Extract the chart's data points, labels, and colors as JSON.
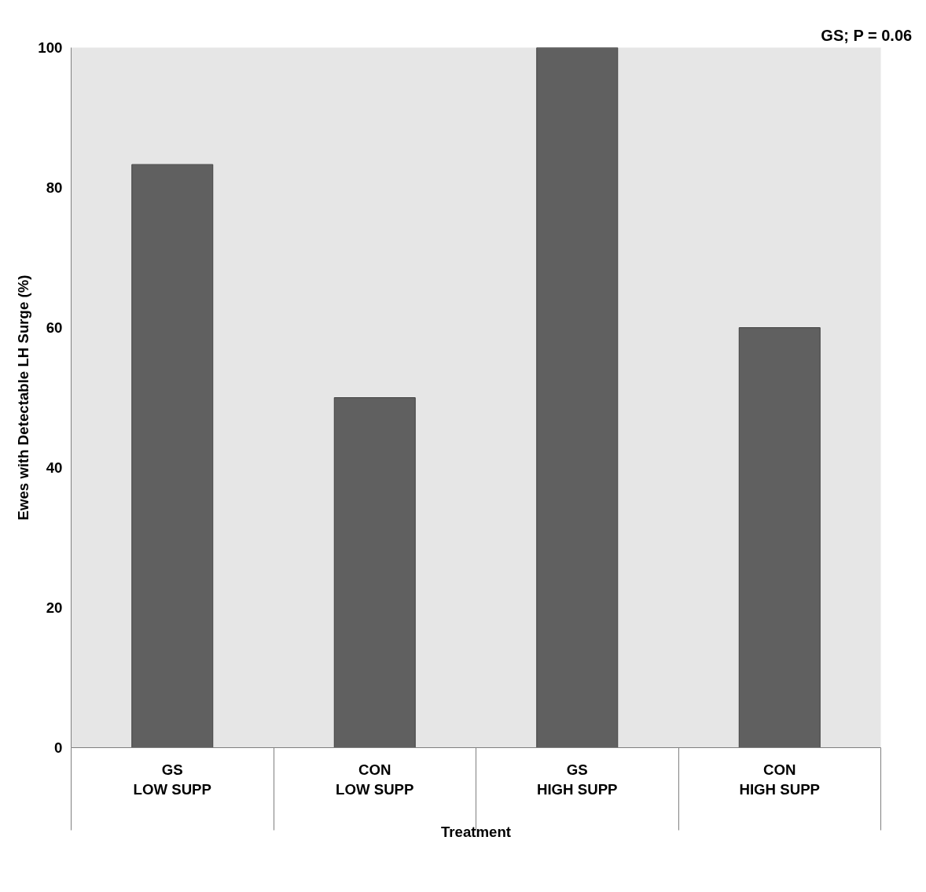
{
  "chart_data": {
    "type": "bar",
    "xlabel": "Treatment",
    "ylabel": "Ewes with Detectable LH Surge (%)",
    "categories": [
      "GS\nLOW SUPP",
      "CON\nLOW SUPP",
      "GS\nHIGH SUPP",
      "CON\nHIGH SUPP"
    ],
    "values": [
      83.3,
      50,
      100,
      60
    ],
    "color": "#606060",
    "ylim": [
      0,
      100
    ],
    "yticks": [
      0,
      20,
      40,
      60,
      80,
      100
    ],
    "annotations": [
      "GS; P = 0.06"
    ]
  }
}
